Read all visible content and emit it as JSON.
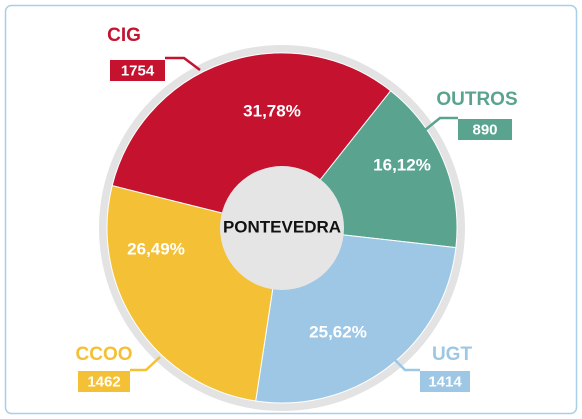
{
  "chart_data": {
    "type": "pie",
    "center_label": "PONTEVEDRA",
    "categories": [
      "CIG",
      "OUTROS",
      "UGT",
      "CCOO"
    ],
    "values": [
      1754,
      890,
      1414,
      1462
    ],
    "shares": [
      31.78,
      16.12,
      25.62,
      26.49
    ],
    "share_labels": [
      "31,78%",
      "16,12%",
      "25,62%",
      "26,49%"
    ],
    "colors": [
      "#c4122f",
      "#5aa48f",
      "#9dc7e5",
      "#f4c035"
    ]
  }
}
